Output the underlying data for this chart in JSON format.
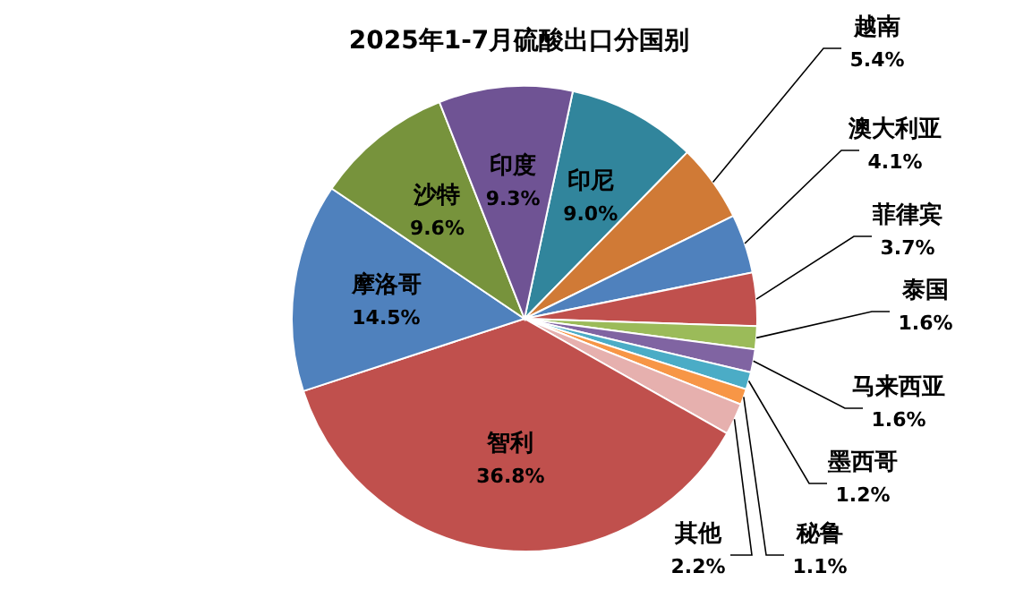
{
  "chart_data": {
    "type": "pie",
    "title": "2025年1-7月硫酸出口分国别",
    "categories": [
      "印尼",
      "越南",
      "澳大利亚",
      "菲律宾",
      "泰国",
      "马来西亚",
      "墨西哥",
      "秘鲁",
      "其他",
      "智利",
      "摩洛哥",
      "沙特",
      "印度"
    ],
    "values": [
      9.0,
      5.4,
      4.1,
      3.7,
      1.6,
      1.6,
      1.2,
      1.1,
      2.2,
      36.8,
      14.5,
      9.6,
      9.3
    ],
    "value_labels": [
      "9.0%",
      "5.4%",
      "4.1%",
      "3.7%",
      "1.6%",
      "1.6%",
      "1.2%",
      "1.1%",
      "2.2%",
      "36.8%",
      "14.5%",
      "9.6%",
      "9.3%"
    ],
    "colors": [
      "#31859c",
      "#d07a36",
      "#4f81bd",
      "#c0504d",
      "#9bbb59",
      "#8064a2",
      "#4bacc6",
      "#f79646",
      "#e6b0ae",
      "#c0504d",
      "#4f81bd",
      "#77933c",
      "#6f5394"
    ]
  }
}
